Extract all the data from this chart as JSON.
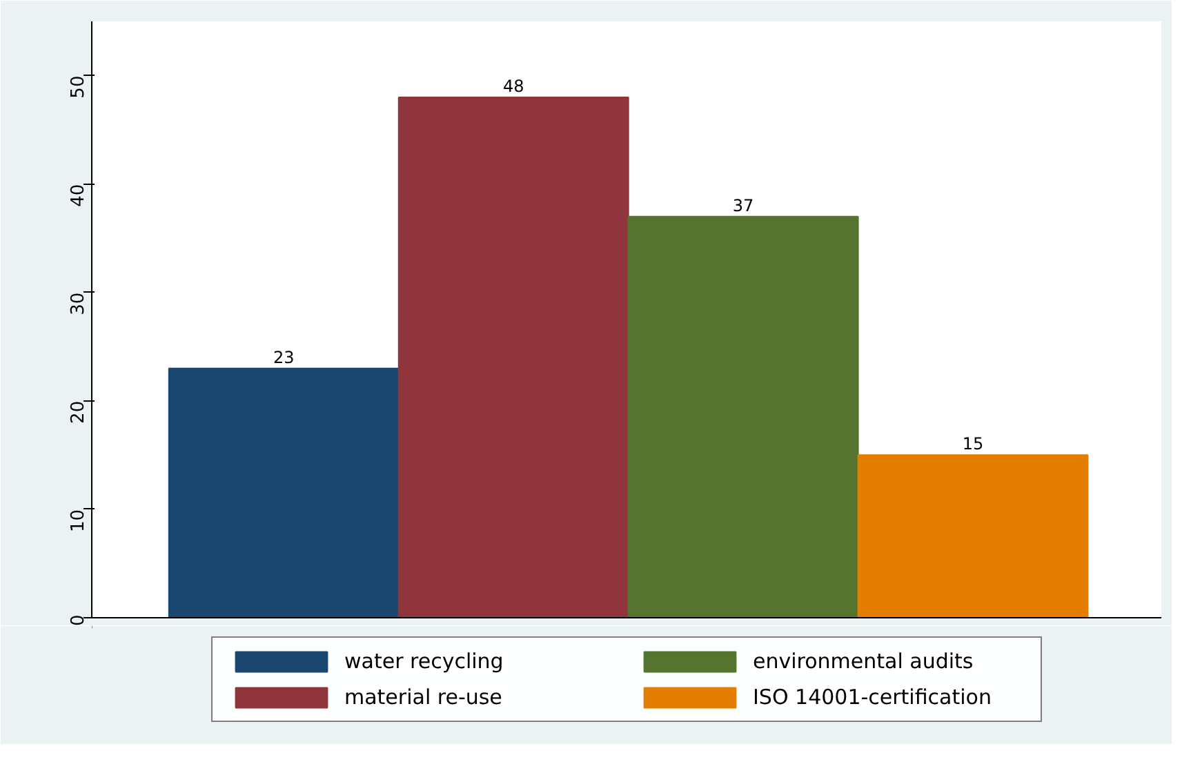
{
  "chart_data": {
    "type": "bar",
    "categories": [
      null
    ],
    "series": [
      {
        "name": "water recycling",
        "color": "#1a476f",
        "values": [
          23
        ]
      },
      {
        "name": "material re-use",
        "color": "#90353b",
        "values": [
          48
        ]
      },
      {
        "name": "environmental audits",
        "color": "#55752f",
        "values": [
          37
        ]
      },
      {
        "name": "ISO 14001-certification",
        "color": "#e37e00",
        "values": [
          15
        ]
      }
    ],
    "ylim": [
      0,
      55
    ],
    "yticks": [
      0,
      10,
      20,
      30,
      40,
      50
    ],
    "data_labels": true,
    "grid": false,
    "legend": "bottom"
  }
}
